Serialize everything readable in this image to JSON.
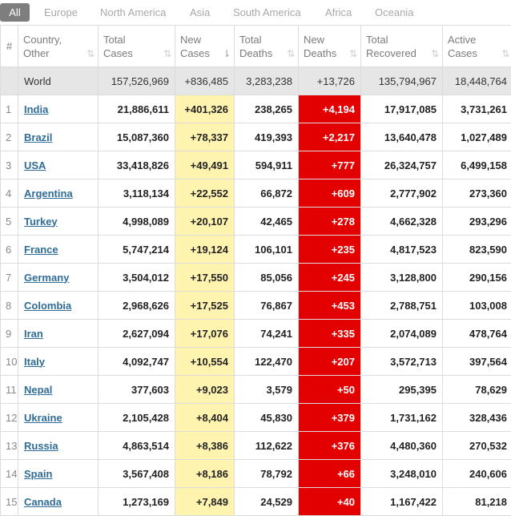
{
  "tabs": [
    "All",
    "Europe",
    "North America",
    "Asia",
    "South America",
    "Africa",
    "Oceania"
  ],
  "headers": {
    "num": "#",
    "country": [
      "Country,",
      "Other"
    ],
    "total_cases": [
      "Total",
      "Cases"
    ],
    "new_cases": [
      "New",
      "Cases"
    ],
    "total_deaths": [
      "Total",
      "Deaths"
    ],
    "new_deaths": [
      "New",
      "Deaths"
    ],
    "total_recovered": [
      "Total",
      "Recovered"
    ],
    "active_cases": [
      "Active",
      "Cases"
    ]
  },
  "sort_icons": {
    "inactive": "⇅",
    "active": "⇂"
  },
  "world": {
    "name": "World",
    "total_cases": "157,526,969",
    "new_cases": "+836,485",
    "total_deaths": "3,283,238",
    "new_deaths": "+13,726",
    "total_recovered": "135,794,967",
    "active_cases": "18,448,764"
  },
  "rows": [
    {
      "n": "1",
      "country": "India",
      "total_cases": "21,886,611",
      "new_cases": "+401,326",
      "total_deaths": "238,265",
      "new_deaths": "+4,194",
      "total_recovered": "17,917,085",
      "active_cases": "3,731,261"
    },
    {
      "n": "2",
      "country": "Brazil",
      "total_cases": "15,087,360",
      "new_cases": "+78,337",
      "total_deaths": "419,393",
      "new_deaths": "+2,217",
      "total_recovered": "13,640,478",
      "active_cases": "1,027,489"
    },
    {
      "n": "3",
      "country": "USA",
      "total_cases": "33,418,826",
      "new_cases": "+49,491",
      "total_deaths": "594,911",
      "new_deaths": "+777",
      "total_recovered": "26,324,757",
      "active_cases": "6,499,158"
    },
    {
      "n": "4",
      "country": "Argentina",
      "total_cases": "3,118,134",
      "new_cases": "+22,552",
      "total_deaths": "66,872",
      "new_deaths": "+609",
      "total_recovered": "2,777,902",
      "active_cases": "273,360"
    },
    {
      "n": "5",
      "country": "Turkey",
      "total_cases": "4,998,089",
      "new_cases": "+20,107",
      "total_deaths": "42,465",
      "new_deaths": "+278",
      "total_recovered": "4,662,328",
      "active_cases": "293,296"
    },
    {
      "n": "6",
      "country": "France",
      "total_cases": "5,747,214",
      "new_cases": "+19,124",
      "total_deaths": "106,101",
      "new_deaths": "+235",
      "total_recovered": "4,817,523",
      "active_cases": "823,590"
    },
    {
      "n": "7",
      "country": "Germany",
      "total_cases": "3,504,012",
      "new_cases": "+17,550",
      "total_deaths": "85,056",
      "new_deaths": "+245",
      "total_recovered": "3,128,800",
      "active_cases": "290,156"
    },
    {
      "n": "8",
      "country": "Colombia",
      "total_cases": "2,968,626",
      "new_cases": "+17,525",
      "total_deaths": "76,867",
      "new_deaths": "+453",
      "total_recovered": "2,788,751",
      "active_cases": "103,008"
    },
    {
      "n": "9",
      "country": "Iran",
      "total_cases": "2,627,094",
      "new_cases": "+17,076",
      "total_deaths": "74,241",
      "new_deaths": "+335",
      "total_recovered": "2,074,089",
      "active_cases": "478,764"
    },
    {
      "n": "10",
      "country": "Italy",
      "total_cases": "4,092,747",
      "new_cases": "+10,554",
      "total_deaths": "122,470",
      "new_deaths": "+207",
      "total_recovered": "3,572,713",
      "active_cases": "397,564"
    },
    {
      "n": "11",
      "country": "Nepal",
      "total_cases": "377,603",
      "new_cases": "+9,023",
      "total_deaths": "3,579",
      "new_deaths": "+50",
      "total_recovered": "295,395",
      "active_cases": "78,629"
    },
    {
      "n": "12",
      "country": "Ukraine",
      "total_cases": "2,105,428",
      "new_cases": "+8,404",
      "total_deaths": "45,830",
      "new_deaths": "+379",
      "total_recovered": "1,731,162",
      "active_cases": "328,436"
    },
    {
      "n": "13",
      "country": "Russia",
      "total_cases": "4,863,514",
      "new_cases": "+8,386",
      "total_deaths": "112,622",
      "new_deaths": "+376",
      "total_recovered": "4,480,360",
      "active_cases": "270,532"
    },
    {
      "n": "14",
      "country": "Spain",
      "total_cases": "3,567,408",
      "new_cases": "+8,186",
      "total_deaths": "78,792",
      "new_deaths": "+66",
      "total_recovered": "3,248,010",
      "active_cases": "240,606"
    },
    {
      "n": "15",
      "country": "Canada",
      "total_cases": "1,273,169",
      "new_cases": "+7,849",
      "total_deaths": "24,529",
      "new_deaths": "+40",
      "total_recovered": "1,167,422",
      "active_cases": "81,218"
    }
  ],
  "colors": {
    "active_tab": "#7e7e7e",
    "new_cases_bg": "#fff3b0",
    "new_deaths_bg": "#e20000",
    "country_link": "#2f6c96",
    "world_row_bg": "#e6e6e6"
  }
}
